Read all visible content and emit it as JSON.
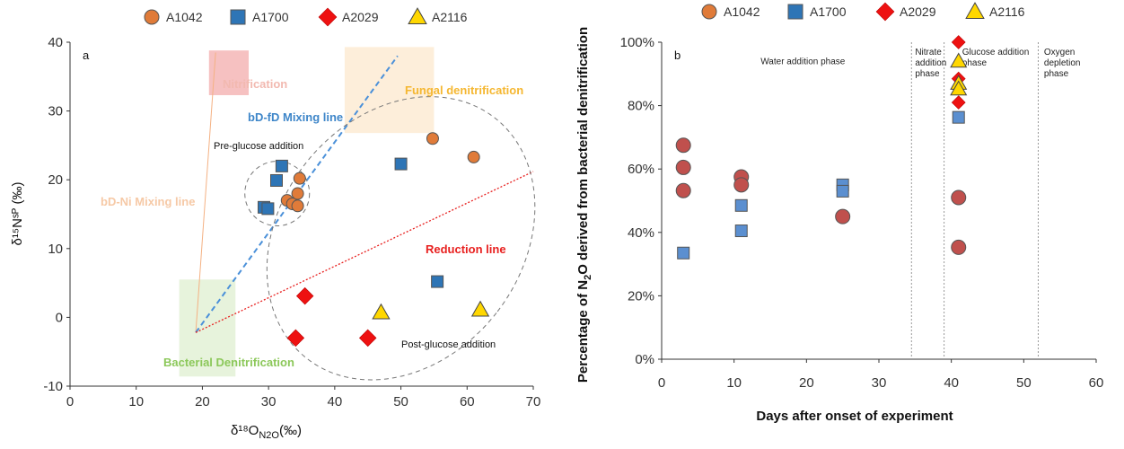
{
  "colors": {
    "A1042": "#E07B39",
    "A1042_b": "#C0504D",
    "A1700": "#2E75B6",
    "A1700_b": "#5B8FD0",
    "A2029": "#EE1111",
    "A2116": "#FFD700",
    "nitrification": "#F4B6B6",
    "fungal": "#FDEBD3",
    "bacterial": "#E3F1D6",
    "mix_ni": "#F4B183",
    "mix_fd": "#4A90D9",
    "reduction": "#E8201F",
    "ellipse": "#777777"
  },
  "chart_data": [
    {
      "type": "scatter",
      "panel": "a",
      "xlabel": "δ¹⁸O",
      "xlabel_sub": "N2O",
      "xlabel_unit": "(‰)",
      "ylabel": "δ¹⁵Nˢᴾ (‰)",
      "xlim": [
        0,
        70
      ],
      "ylim": [
        -10,
        40
      ],
      "xticks": [
        "0",
        "10",
        "20",
        "30",
        "40",
        "50",
        "60",
        "70"
      ],
      "yticks": [
        "-10",
        "0",
        "10",
        "20",
        "30",
        "40"
      ],
      "legend": [
        "A1042",
        "A1700",
        "A2029",
        "A2116"
      ],
      "series": [
        {
          "name": "A1042",
          "marker": "circle",
          "x": [
            32.8,
            33.6,
            34.4,
            34.4,
            34.7,
            54.8,
            61.0
          ],
          "y": [
            17.0,
            16.5,
            18.0,
            16.2,
            20.2,
            26.0,
            23.3
          ]
        },
        {
          "name": "A1700",
          "marker": "square",
          "x": [
            29.3,
            29.9,
            31.2,
            32.0,
            50.0,
            55.5
          ],
          "y": [
            16.0,
            15.8,
            19.9,
            22.0,
            22.3,
            5.2
          ]
        },
        {
          "name": "A2029",
          "marker": "diamond",
          "x": [
            35.5,
            34.1,
            45.0
          ],
          "y": [
            3.1,
            -3.0,
            -3.0
          ]
        },
        {
          "name": "A2116",
          "marker": "triangle",
          "x": [
            47.0,
            62.0
          ],
          "y": [
            0.7,
            1.1
          ]
        }
      ],
      "boxes": [
        {
          "label": "Nitrification",
          "x": [
            21.0,
            27.0
          ],
          "y": [
            32.3,
            38.8
          ]
        },
        {
          "label": "Fungal denitrification",
          "x": [
            41.5,
            55.0
          ],
          "y": [
            26.8,
            39.3
          ]
        },
        {
          "label": "Bacterial Denitrification",
          "x": [
            16.5,
            25.0
          ],
          "y": [
            -8.6,
            5.5
          ]
        }
      ],
      "lines": [
        {
          "label": "bD-Ni Mixing line",
          "x": [
            19.0,
            22.0
          ],
          "y": [
            -2.2,
            38.5
          ]
        },
        {
          "label": "bD-fD Mixing line",
          "x": [
            19.0,
            49.5
          ],
          "y": [
            -2.2,
            38.0
          ]
        },
        {
          "label": "Reduction line",
          "x": [
            19.0,
            70.0
          ],
          "y": [
            -2.2,
            21.2
          ]
        }
      ],
      "ellipse_labels": [
        "Pre-glucose addition",
        "Post-glucose addition"
      ]
    },
    {
      "type": "scatter",
      "panel": "b",
      "xlabel": "Days after onset of experiment",
      "ylabel_pre": "Percentage of N",
      "ylabel_sub": "2",
      "ylabel_post": "O derived from bacterial denitrification",
      "xlim": [
        0,
        60
      ],
      "ylim": [
        0,
        100
      ],
      "xticks": [
        "0",
        "10",
        "20",
        "30",
        "40",
        "50",
        "60"
      ],
      "yticks": [
        "0%",
        "20%",
        "40%",
        "60%",
        "80%",
        "100%"
      ],
      "legend": [
        "A1042",
        "A1700",
        "A2029",
        "A2116"
      ],
      "series": [
        {
          "name": "A1042",
          "marker": "circle",
          "x": [
            3,
            3,
            3,
            11,
            11,
            25,
            41,
            41
          ],
          "y": [
            67.5,
            60.5,
            53.2,
            57.5,
            55.0,
            45.0,
            51.0,
            35.3
          ]
        },
        {
          "name": "A1700",
          "marker": "square",
          "x": [
            3,
            11,
            11,
            25,
            25,
            41
          ],
          "y": [
            33.5,
            48.5,
            40.5,
            55.0,
            53.0,
            76.3
          ]
        },
        {
          "name": "A2029",
          "marker": "diamond",
          "x": [
            41,
            41,
            41
          ],
          "y": [
            100.0,
            88.5,
            81.0
          ]
        },
        {
          "name": "A2116",
          "marker": "triangle",
          "x": [
            41,
            41,
            41
          ],
          "y": [
            94.0,
            87.0,
            85.2
          ]
        }
      ],
      "phase_lines": [
        34.5,
        39.0,
        52.0
      ],
      "phases": [
        {
          "lines": [
            "Water addition phase"
          ],
          "x": 19.5,
          "y": 93
        },
        {
          "lines": [
            "Nitrate",
            "addition",
            "phase"
          ],
          "x": 35.0,
          "y": 96
        },
        {
          "lines": [
            "Glucose addition",
            "phase"
          ],
          "x": 41.5,
          "y": 96
        },
        {
          "lines": [
            "Oxygen",
            "depletion",
            "phase"
          ],
          "x": 52.8,
          "y": 96
        }
      ]
    }
  ]
}
